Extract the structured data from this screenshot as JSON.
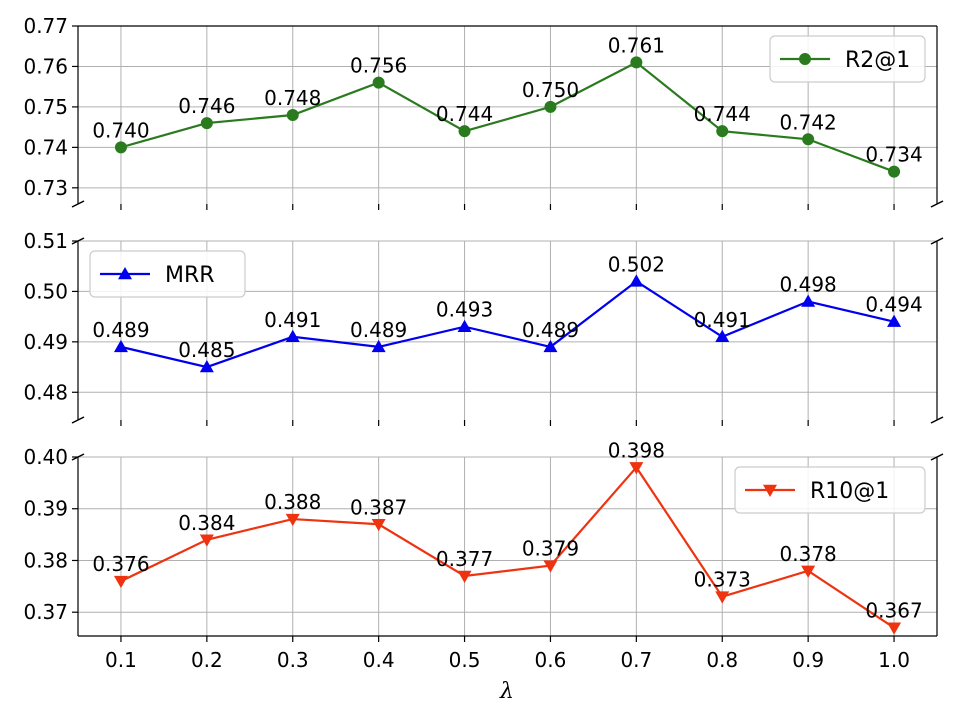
{
  "chart_data": {
    "type": "line",
    "xlabel": "λ",
    "x": [
      0.1,
      0.2,
      0.3,
      0.4,
      0.5,
      0.6,
      0.7,
      0.8,
      0.9,
      1.0
    ],
    "x_tick_labels": [
      "0.1",
      "0.2",
      "0.3",
      "0.4",
      "0.5",
      "0.6",
      "0.7",
      "0.8",
      "0.9",
      "1.0"
    ],
    "grid": true,
    "panels": [
      {
        "name": "R2@1",
        "color": "#2a7a1e",
        "marker": "circle",
        "legend_position": "top-right",
        "ylim": [
          0.726,
          0.77
        ],
        "yticks": [
          0.73,
          0.74,
          0.75,
          0.76,
          0.77
        ],
        "ytick_labels": [
          "0.73",
          "0.74",
          "0.75",
          "0.76",
          "0.77"
        ],
        "values": [
          0.74,
          0.746,
          0.748,
          0.756,
          0.744,
          0.75,
          0.761,
          0.744,
          0.742,
          0.734
        ],
        "value_labels": [
          "0.740",
          "0.746",
          "0.748",
          "0.756",
          "0.744",
          "0.750",
          "0.761",
          "0.744",
          "0.742",
          "0.734"
        ]
      },
      {
        "name": "MRR",
        "color": "#0000ee",
        "marker": "triangle-up",
        "legend_position": "top-left",
        "ylim": [
          0.4745,
          0.51
        ],
        "yticks": [
          0.48,
          0.49,
          0.5,
          0.51
        ],
        "ytick_labels": [
          "0.48",
          "0.49",
          "0.50",
          "0.51"
        ],
        "values": [
          0.489,
          0.485,
          0.491,
          0.489,
          0.493,
          0.489,
          0.502,
          0.491,
          0.498,
          0.494
        ],
        "value_labels": [
          "0.489",
          "0.485",
          "0.491",
          "0.489",
          "0.493",
          "0.489",
          "0.502",
          "0.491",
          "0.498",
          "0.494"
        ]
      },
      {
        "name": "R10@1",
        "color": "#ee3311",
        "marker": "triangle-down",
        "legend_position": "top-right",
        "ylim": [
          0.3654,
          0.4
        ],
        "yticks": [
          0.37,
          0.38,
          0.39,
          0.4
        ],
        "ytick_labels": [
          "0.37",
          "0.38",
          "0.39",
          "0.40"
        ],
        "values": [
          0.376,
          0.384,
          0.388,
          0.387,
          0.377,
          0.379,
          0.398,
          0.373,
          0.378,
          0.367
        ],
        "value_labels": [
          "0.376",
          "0.384",
          "0.388",
          "0.387",
          "0.377",
          "0.379",
          "0.398",
          "0.373",
          "0.378",
          "0.367"
        ]
      }
    ]
  }
}
